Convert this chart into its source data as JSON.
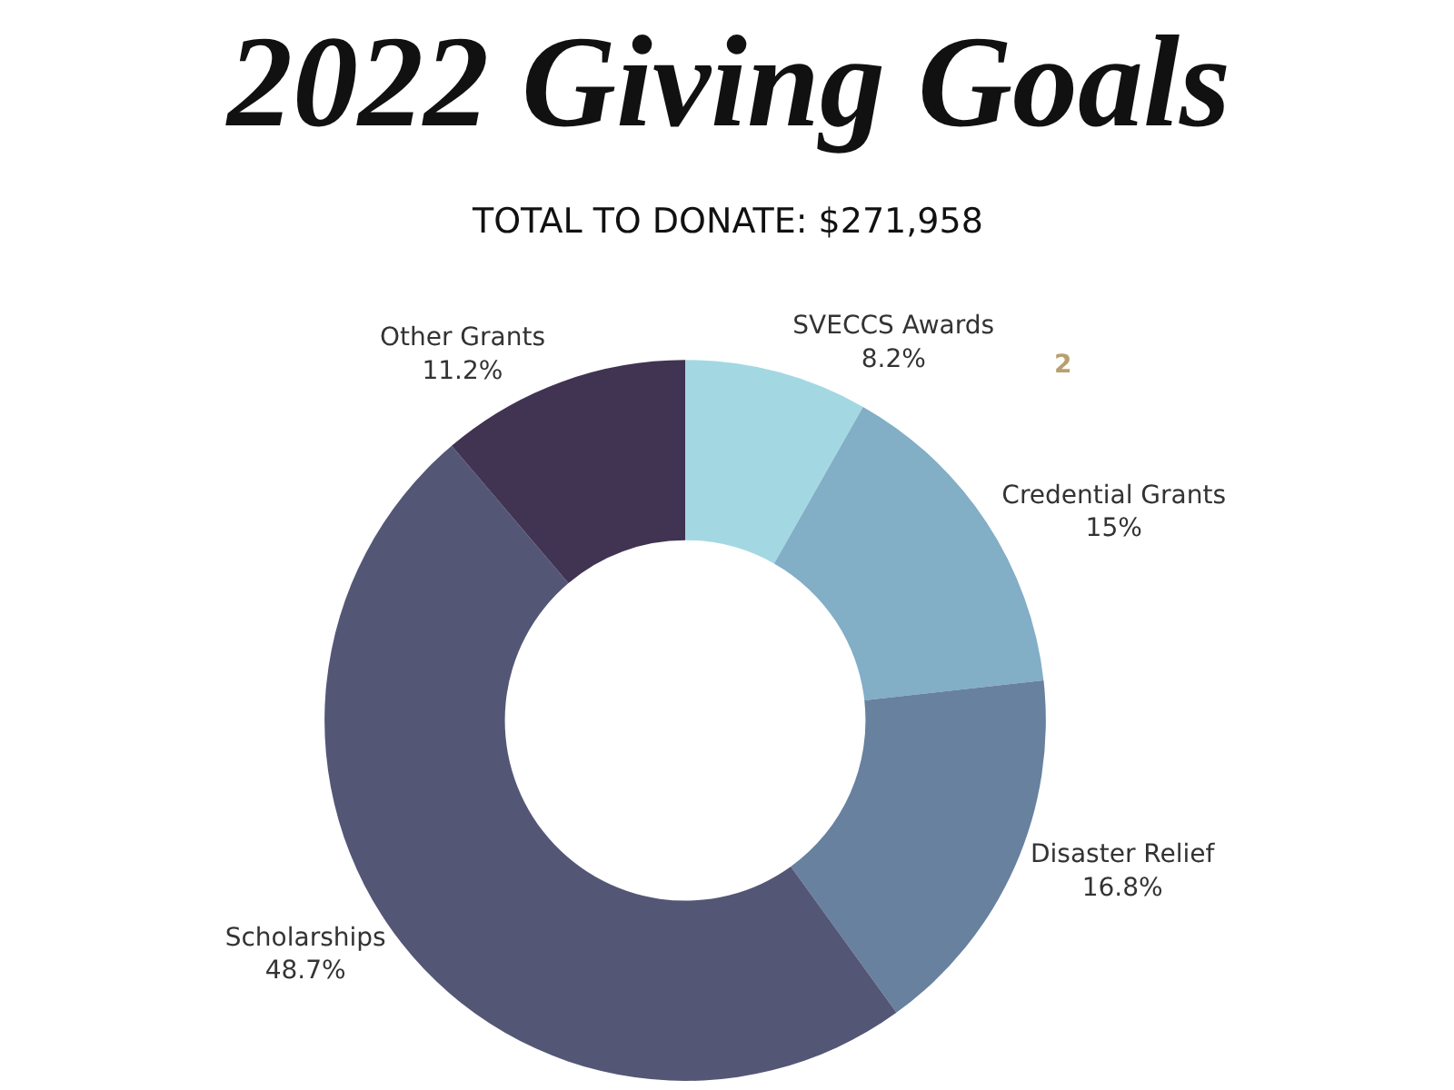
{
  "chart_data": {
    "type": "donut",
    "title": "2022 Giving Goals",
    "subtitle": "TOTAL TO DONATE: $271,958",
    "categories": [
      "SVECCS Awards",
      "Credential Grants",
      "Disaster Relief",
      "Scholarships",
      "Other Grants"
    ],
    "values": [
      8.2,
      15,
      16.8,
      48.7,
      11.2
    ],
    "value_labels": [
      "8.2%",
      "15%",
      "16.8%",
      "48.7%",
      "11.2%"
    ],
    "colors": [
      "#a3d8e3",
      "#82aec6",
      "#67819f",
      "#545676",
      "#413352"
    ],
    "annotations": [
      "2"
    ],
    "legend": false
  }
}
